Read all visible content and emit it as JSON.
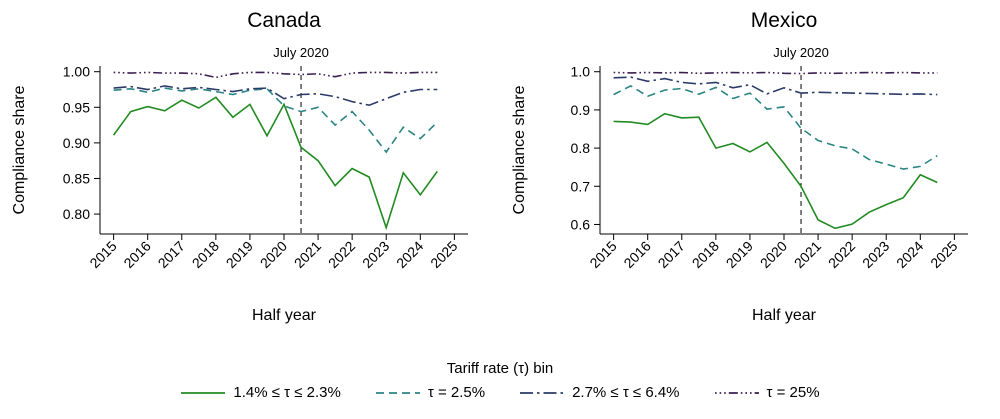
{
  "legend": {
    "title": "Tariff rate (τ) bin",
    "items": [
      {
        "label": "1.4% ≤ τ ≤ 2.3%",
        "color": "#228b22",
        "style": "solid"
      },
      {
        "label": "τ = 2.5%",
        "color": "#2b8484",
        "style": "dashed"
      },
      {
        "label": "2.7% ≤ τ ≤ 6.4%",
        "color": "#2b3a67",
        "style": "dashdot"
      },
      {
        "label": "τ = 25%",
        "color": "#3b1f50",
        "style": "dot"
      }
    ]
  },
  "chart_data": [
    {
      "type": "line",
      "title": "Canada",
      "xlabel": "Half year",
      "ylabel": "Compliance share",
      "x_tick_labels": [
        "2015",
        "2016",
        "2017",
        "2018",
        "2019",
        "2020",
        "2021",
        "2022",
        "2023",
        "2024",
        "2025"
      ],
      "x_range_note": "two observations per year (half-years), 2015H1 through 2024H2",
      "ylim": [
        0.772,
        1.008
      ],
      "ytick_values": [
        0.8,
        0.85,
        0.9,
        0.95,
        1.0
      ],
      "ytick_labels": [
        "0.80",
        "0.85",
        "0.90",
        "0.95",
        "1.00"
      ],
      "vline": {
        "label": "July 2020",
        "x_index": 11
      },
      "series": [
        {
          "name": "1.4% ≤ τ ≤ 2.3%",
          "color": "#228b22",
          "style": "solid",
          "values": [
            0.911,
            0.944,
            0.951,
            0.945,
            0.96,
            0.949,
            0.964,
            0.936,
            0.954,
            0.91,
            0.954,
            0.894,
            0.875,
            0.84,
            0.864,
            0.852,
            0.781,
            0.858,
            0.827,
            0.86
          ]
        },
        {
          "name": "τ = 2.5%",
          "color": "#2b8484",
          "style": "dashed",
          "values": [
            0.974,
            0.976,
            0.971,
            0.977,
            0.973,
            0.976,
            0.972,
            0.968,
            0.974,
            0.976,
            0.952,
            0.944,
            0.95,
            0.925,
            0.944,
            0.918,
            0.887,
            0.922,
            0.906,
            0.929
          ]
        },
        {
          "name": "2.7% ≤ τ ≤ 6.4%",
          "color": "#2b3a67",
          "style": "dashdot",
          "values": [
            0.977,
            0.979,
            0.975,
            0.98,
            0.976,
            0.978,
            0.975,
            0.972,
            0.976,
            0.977,
            0.962,
            0.968,
            0.969,
            0.965,
            0.958,
            0.953,
            0.962,
            0.971,
            0.975,
            0.975
          ]
        },
        {
          "name": "τ = 25%",
          "color": "#3b1f50",
          "style": "dot",
          "values": [
            0.999,
            0.998,
            0.999,
            0.998,
            0.998,
            0.997,
            0.992,
            0.997,
            0.999,
            0.999,
            0.997,
            0.996,
            0.997,
            0.993,
            0.998,
            0.999,
            0.999,
            0.998,
            0.999,
            0.999
          ]
        }
      ]
    },
    {
      "type": "line",
      "title": "Mexico",
      "xlabel": "Half year",
      "ylabel": "Compliance share",
      "x_tick_labels": [
        "2015",
        "2016",
        "2017",
        "2018",
        "2019",
        "2020",
        "2021",
        "2022",
        "2023",
        "2024",
        "2025"
      ],
      "x_range_note": "two observations per year (half-years), 2015H1 through 2024H2",
      "ylim": [
        0.575,
        1.015
      ],
      "ytick_values": [
        0.6,
        0.7,
        0.8,
        0.9,
        1.0
      ],
      "ytick_labels": [
        "0.6",
        "0.7",
        "0.8",
        "0.9",
        "1.0"
      ],
      "vline": {
        "label": "July 2020",
        "x_index": 11
      },
      "series": [
        {
          "name": "1.4% ≤ τ ≤ 2.3%",
          "color": "#228b22",
          "style": "solid",
          "values": [
            0.87,
            0.868,
            0.862,
            0.89,
            0.879,
            0.881,
            0.8,
            0.812,
            0.79,
            0.815,
            0.76,
            0.7,
            0.612,
            0.59,
            0.601,
            0.632,
            0.652,
            0.67,
            0.73,
            0.71
          ]
        },
        {
          "name": "τ = 2.5%",
          "color": "#2b8484",
          "style": "dashed",
          "values": [
            0.94,
            0.963,
            0.936,
            0.952,
            0.956,
            0.941,
            0.959,
            0.93,
            0.944,
            0.902,
            0.908,
            0.852,
            0.82,
            0.806,
            0.798,
            0.77,
            0.758,
            0.745,
            0.752,
            0.78
          ]
        },
        {
          "name": "2.7% ≤ τ ≤ 6.4%",
          "color": "#2b3a67",
          "style": "dashdot",
          "values": [
            0.984,
            0.986,
            0.975,
            0.982,
            0.972,
            0.968,
            0.972,
            0.958,
            0.966,
            0.942,
            0.958,
            0.944,
            0.946,
            0.945,
            0.944,
            0.943,
            0.942,
            0.941,
            0.942,
            0.94
          ]
        },
        {
          "name": "τ = 25%",
          "color": "#3b1f50",
          "style": "dot",
          "values": [
            0.998,
            0.997,
            0.998,
            0.997,
            0.998,
            0.996,
            0.997,
            0.998,
            0.997,
            0.998,
            0.996,
            0.995,
            0.997,
            0.996,
            0.997,
            0.998,
            0.997,
            0.998,
            0.997,
            0.997
          ]
        }
      ]
    }
  ]
}
